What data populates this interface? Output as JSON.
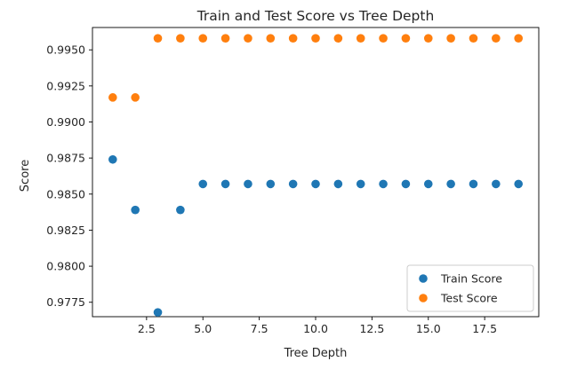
{
  "chart_data": {
    "type": "scatter",
    "title": "Train and Test Score vs Tree Depth",
    "xlabel": "Tree Depth",
    "ylabel": "Score",
    "xlim": [
      0.1,
      19.9
    ],
    "ylim": [
      0.9765,
      0.99655
    ],
    "x_ticks": [
      2.5,
      5.0,
      7.5,
      10.0,
      12.5,
      15.0,
      17.5
    ],
    "x_tick_labels": [
      "2.5",
      "5.0",
      "7.5",
      "10.0",
      "12.5",
      "15.0",
      "17.5"
    ],
    "y_ticks": [
      0.9775,
      0.98,
      0.9825,
      0.985,
      0.9875,
      0.99,
      0.9925,
      0.995
    ],
    "y_tick_labels": [
      "0.9775",
      "0.9800",
      "0.9825",
      "0.9850",
      "0.9875",
      "0.9900",
      "0.9925",
      "0.9950"
    ],
    "grid": false,
    "legend_position": "lower-right",
    "series": [
      {
        "name": "Train Score",
        "color": "#1f77b4",
        "x": [
          1,
          2,
          3,
          4,
          5,
          6,
          7,
          8,
          9,
          10,
          11,
          12,
          13,
          14,
          15,
          16,
          17,
          18,
          19
        ],
        "y": [
          0.9874,
          0.9839,
          0.9768,
          0.9839,
          0.9857,
          0.9857,
          0.9857,
          0.9857,
          0.9857,
          0.9857,
          0.9857,
          0.9857,
          0.9857,
          0.9857,
          0.9857,
          0.9857,
          0.9857,
          0.9857,
          0.9857
        ]
      },
      {
        "name": "Test Score",
        "color": "#ff7f0e",
        "x": [
          1,
          2,
          3,
          4,
          5,
          6,
          7,
          8,
          9,
          10,
          11,
          12,
          13,
          14,
          15,
          16,
          17,
          18,
          19
        ],
        "y": [
          0.9917,
          0.9917,
          0.9958,
          0.9958,
          0.9958,
          0.9958,
          0.9958,
          0.9958,
          0.9958,
          0.9958,
          0.9958,
          0.9958,
          0.9958,
          0.9958,
          0.9958,
          0.9958,
          0.9958,
          0.9958,
          0.9958
        ]
      }
    ]
  }
}
